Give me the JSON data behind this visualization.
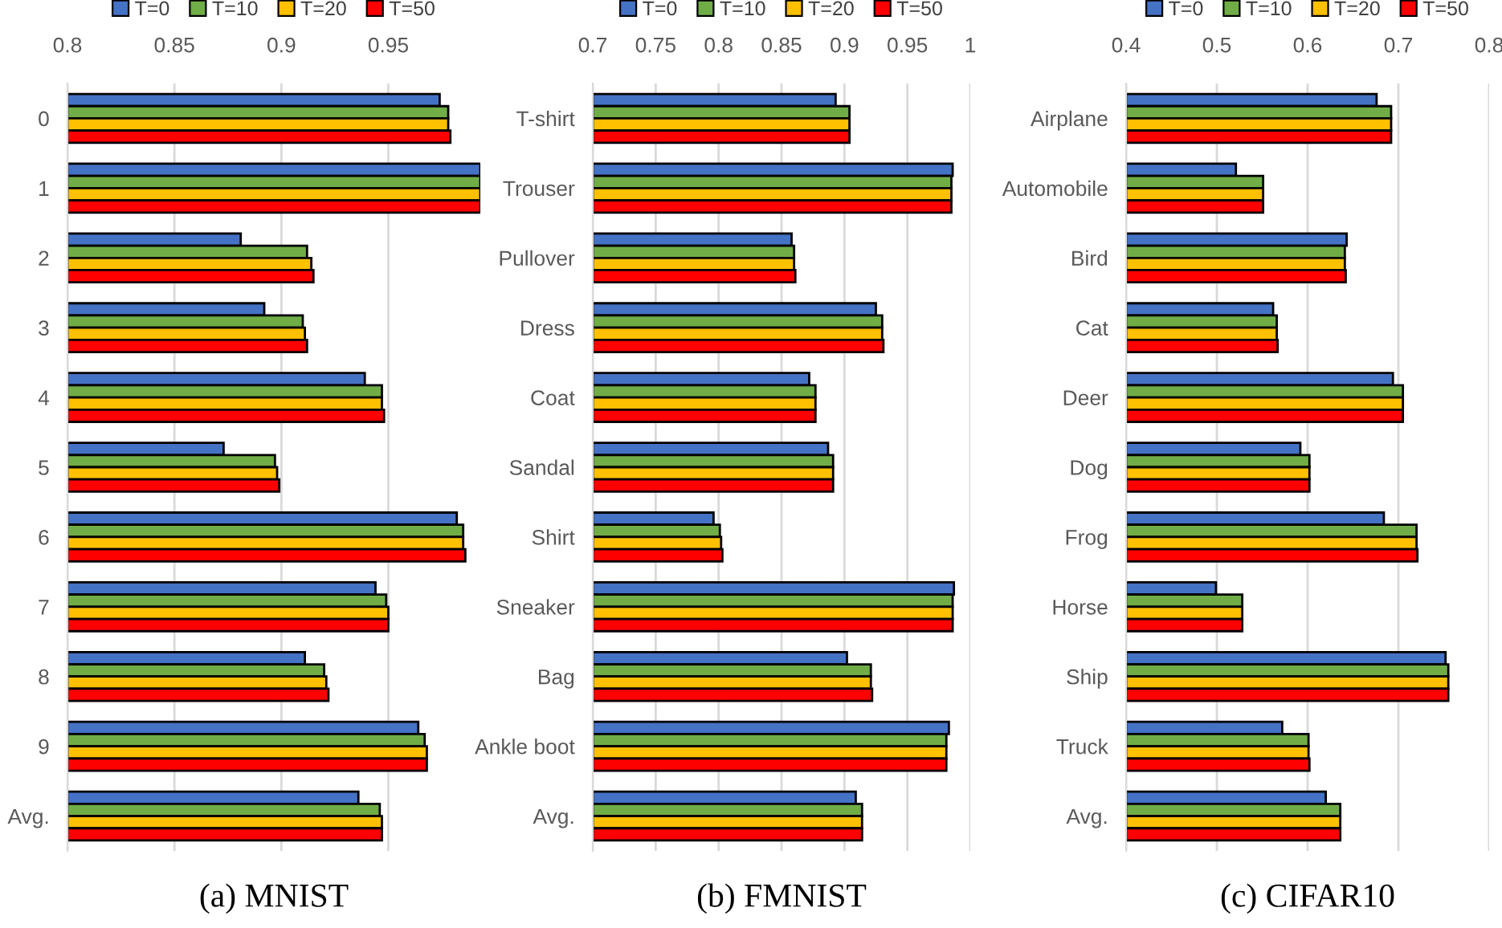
{
  "chart_data": [
    {
      "type": "bar",
      "orientation": "horizontal",
      "title": "(a) MNIST",
      "categories": [
        "0",
        "1",
        "2",
        "3",
        "4",
        "5",
        "6",
        "7",
        "8",
        "9",
        "Avg."
      ],
      "series": [
        {
          "name": "T=0",
          "color": "#4472c4",
          "values": [
            0.974,
            0.993,
            0.881,
            0.892,
            0.939,
            0.873,
            0.982,
            0.944,
            0.911,
            0.964,
            0.936
          ]
        },
        {
          "name": "T=10",
          "color": "#70ad47",
          "values": [
            0.978,
            0.993,
            0.912,
            0.91,
            0.947,
            0.897,
            0.985,
            0.949,
            0.92,
            0.967,
            0.946
          ]
        },
        {
          "name": "T=20",
          "color": "#ffc000",
          "values": [
            0.978,
            0.993,
            0.914,
            0.911,
            0.947,
            0.898,
            0.985,
            0.95,
            0.921,
            0.968,
            0.947
          ]
        },
        {
          "name": "T=50",
          "color": "#ff0000",
          "values": [
            0.979,
            0.993,
            0.915,
            0.912,
            0.948,
            0.899,
            0.986,
            0.95,
            0.922,
            0.968,
            0.947
          ]
        }
      ],
      "xlim": [
        0.8,
        0.993
      ],
      "xticks": [
        0.8,
        0.85,
        0.9,
        0.95
      ],
      "grid": "x",
      "legend": "top"
    },
    {
      "type": "bar",
      "orientation": "horizontal",
      "title": "(b) FMNIST",
      "categories": [
        "T-shirt",
        "Trouser",
        "Pullover",
        "Dress",
        "Coat",
        "Sandal",
        "Shirt",
        "Sneaker",
        "Bag",
        "Ankle boot",
        "Avg."
      ],
      "series": [
        {
          "name": "T=0",
          "color": "#4472c4",
          "values": [
            0.893,
            0.986,
            0.858,
            0.925,
            0.872,
            0.887,
            0.796,
            0.987,
            0.902,
            0.983,
            0.909
          ]
        },
        {
          "name": "T=10",
          "color": "#70ad47",
          "values": [
            0.904,
            0.985,
            0.86,
            0.93,
            0.877,
            0.891,
            0.801,
            0.986,
            0.921,
            0.981,
            0.914
          ]
        },
        {
          "name": "T=20",
          "color": "#ffc000",
          "values": [
            0.904,
            0.985,
            0.86,
            0.93,
            0.877,
            0.891,
            0.802,
            0.986,
            0.921,
            0.981,
            0.914
          ]
        },
        {
          "name": "T=50",
          "color": "#ff0000",
          "values": [
            0.904,
            0.985,
            0.861,
            0.931,
            0.877,
            0.891,
            0.803,
            0.986,
            0.922,
            0.981,
            0.914
          ]
        }
      ],
      "xlim": [
        0.7,
        1
      ],
      "xticks": [
        0.7,
        0.75,
        0.8,
        0.85,
        0.9,
        0.95,
        1
      ],
      "grid": "x",
      "legend": "top"
    },
    {
      "type": "bar",
      "orientation": "horizontal",
      "title": "(c) CIFAR10",
      "categories": [
        "Airplane",
        "Automobile",
        "Bird",
        "Cat",
        "Deer",
        "Dog",
        "Frog",
        "Horse",
        "Ship",
        "Truck",
        "Avg."
      ],
      "series": [
        {
          "name": "T=0",
          "color": "#4472c4",
          "values": [
            0.676,
            0.521,
            0.643,
            0.562,
            0.694,
            0.592,
            0.684,
            0.499,
            0.752,
            0.572,
            0.62
          ]
        },
        {
          "name": "T=10",
          "color": "#70ad47",
          "values": [
            0.692,
            0.551,
            0.641,
            0.566,
            0.705,
            0.602,
            0.72,
            0.528,
            0.755,
            0.601,
            0.636
          ]
        },
        {
          "name": "T=20",
          "color": "#ffc000",
          "values": [
            0.692,
            0.551,
            0.641,
            0.566,
            0.705,
            0.602,
            0.72,
            0.528,
            0.755,
            0.601,
            0.636
          ]
        },
        {
          "name": "T=50",
          "color": "#ff0000",
          "values": [
            0.692,
            0.551,
            0.642,
            0.567,
            0.705,
            0.602,
            0.721,
            0.528,
            0.755,
            0.602,
            0.636
          ]
        }
      ],
      "xlim": [
        0.4,
        0.8
      ],
      "xticks": [
        0.4,
        0.5,
        0.6,
        0.7,
        0.8
      ],
      "grid": "x",
      "legend": "top"
    }
  ]
}
